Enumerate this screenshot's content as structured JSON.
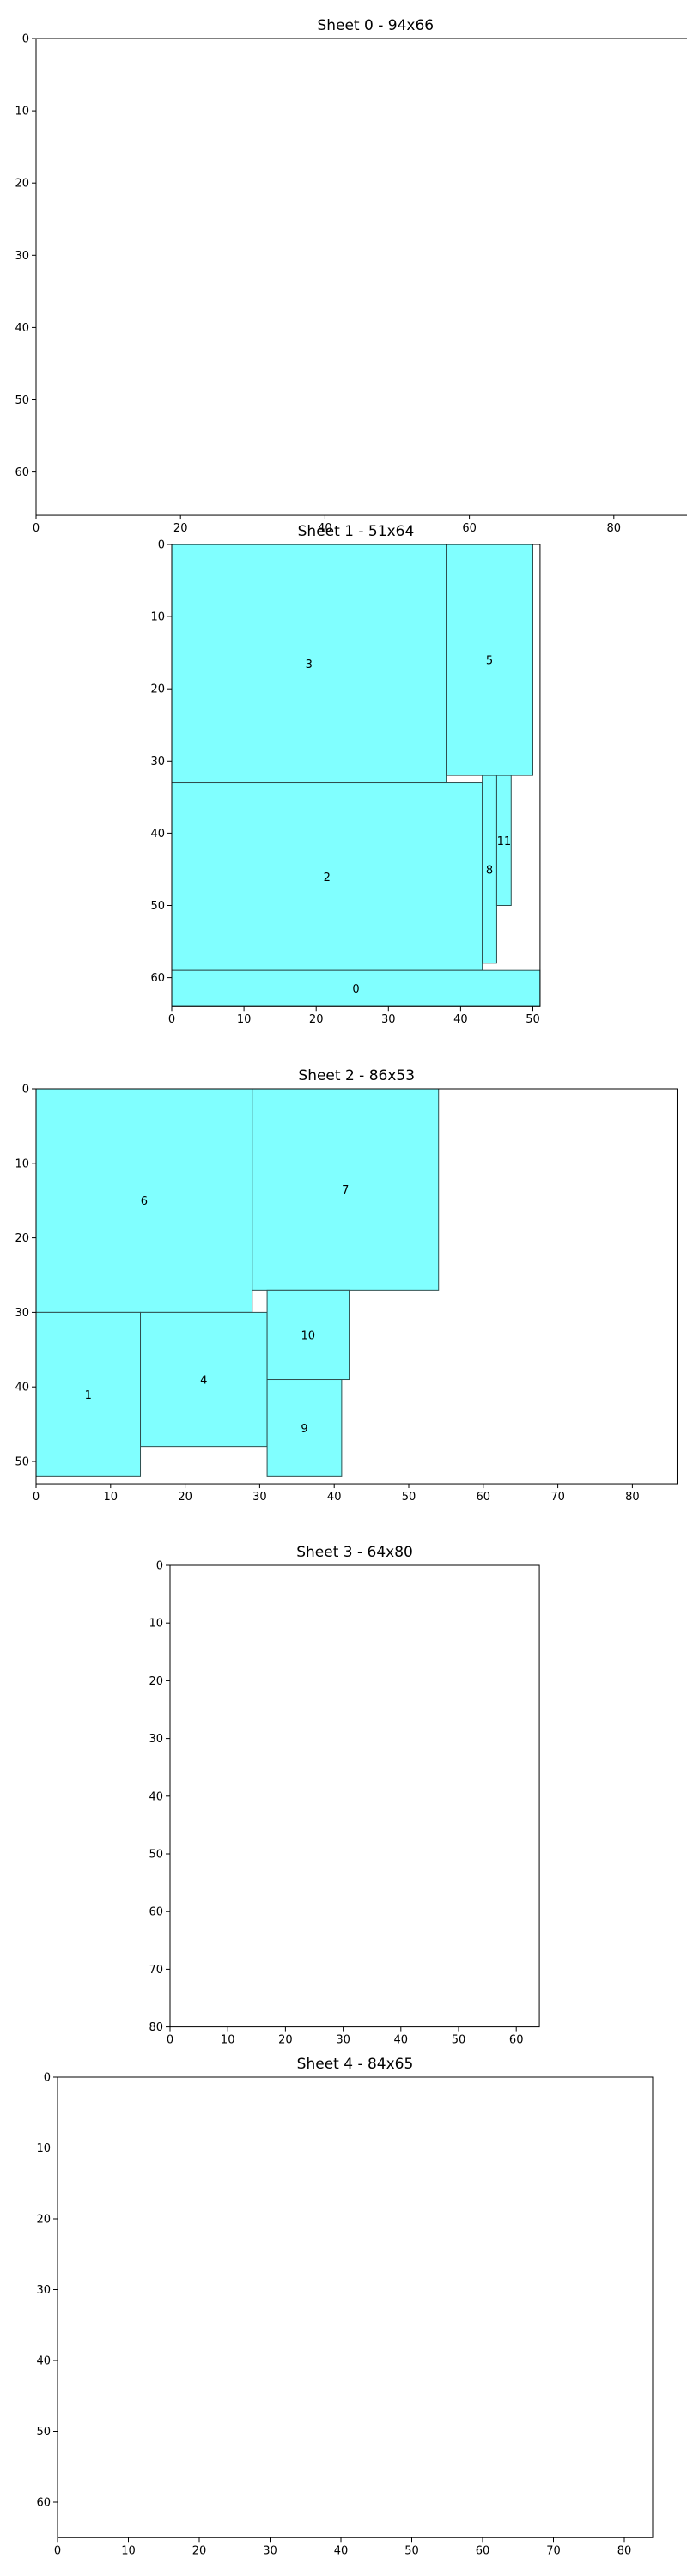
{
  "chart_data": [
    {
      "type": "rectangle-packing",
      "title": "Sheet 0 - 94x66",
      "width": 94,
      "height": 66,
      "xlim": [
        0,
        94
      ],
      "ylim": [
        66,
        0
      ],
      "x_ticks": [
        0,
        20,
        40,
        60,
        80
      ],
      "y_ticks": [
        0,
        10,
        20,
        30,
        40,
        50,
        60
      ],
      "fill_color": "#80ffff",
      "pieces": []
    },
    {
      "type": "rectangle-packing",
      "title": "Sheet 1 - 51x64",
      "width": 51,
      "height": 64,
      "xlim": [
        0,
        51
      ],
      "ylim": [
        64,
        0
      ],
      "x_ticks": [
        0,
        10,
        20,
        30,
        40,
        50
      ],
      "y_ticks": [
        0,
        10,
        20,
        30,
        40,
        50,
        60
      ],
      "fill_color": "#80ffff",
      "pieces": [
        {
          "label": "3",
          "x": 0,
          "y": 0,
          "w": 38,
          "h": 33
        },
        {
          "label": "5",
          "x": 38,
          "y": 0,
          "w": 12,
          "h": 32
        },
        {
          "label": "2",
          "x": 0,
          "y": 33,
          "w": 43,
          "h": 26
        },
        {
          "label": "8",
          "x": 43,
          "y": 32,
          "w": 2,
          "h": 26
        },
        {
          "label": "11",
          "x": 45,
          "y": 32,
          "w": 2,
          "h": 18
        },
        {
          "label": "0",
          "x": 0,
          "y": 59,
          "w": 51,
          "h": 5
        }
      ]
    },
    {
      "type": "rectangle-packing",
      "title": "Sheet 2 - 86x53",
      "width": 86,
      "height": 53,
      "xlim": [
        0,
        86
      ],
      "ylim": [
        53,
        0
      ],
      "x_ticks": [
        0,
        10,
        20,
        30,
        40,
        50,
        60,
        70,
        80
      ],
      "y_ticks": [
        0,
        10,
        20,
        30,
        40,
        50
      ],
      "fill_color": "#80ffff",
      "pieces": [
        {
          "label": "6",
          "x": 0,
          "y": 0,
          "w": 29,
          "h": 30
        },
        {
          "label": "7",
          "x": 29,
          "y": 0,
          "w": 25,
          "h": 27
        },
        {
          "label": "1",
          "x": 0,
          "y": 30,
          "w": 14,
          "h": 22
        },
        {
          "label": "4",
          "x": 14,
          "y": 30,
          "w": 17,
          "h": 18
        },
        {
          "label": "10",
          "x": 31,
          "y": 27,
          "w": 11,
          "h": 12
        },
        {
          "label": "9",
          "x": 31,
          "y": 39,
          "w": 10,
          "h": 13
        }
      ]
    },
    {
      "type": "rectangle-packing",
      "title": "Sheet 3 - 64x80",
      "width": 64,
      "height": 80,
      "xlim": [
        0,
        64
      ],
      "ylim": [
        80,
        0
      ],
      "x_ticks": [
        0,
        10,
        20,
        30,
        40,
        50,
        60
      ],
      "y_ticks": [
        0,
        10,
        20,
        30,
        40,
        50,
        60,
        70,
        80
      ],
      "fill_color": "#80ffff",
      "pieces": []
    },
    {
      "type": "rectangle-packing",
      "title": "Sheet 4 - 84x65",
      "width": 84,
      "height": 65,
      "xlim": [
        0,
        84
      ],
      "ylim": [
        65,
        0
      ],
      "x_ticks": [
        0,
        10,
        20,
        30,
        40,
        50,
        60,
        70,
        80
      ],
      "y_ticks": [
        0,
        10,
        20,
        30,
        40,
        50,
        60
      ],
      "fill_color": "#80ffff",
      "pieces": []
    }
  ]
}
